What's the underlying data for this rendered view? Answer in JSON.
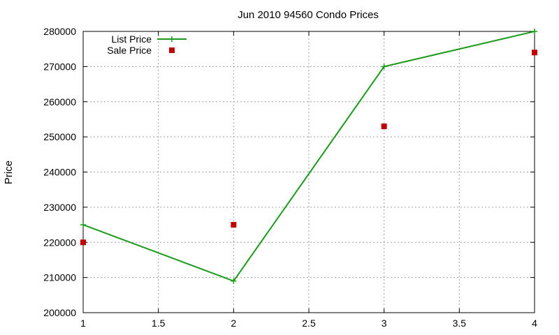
{
  "chart_data": {
    "type": "line",
    "title": "Jun 2010 94560 Condo Prices",
    "xlabel": "",
    "ylabel": "Price",
    "xlim": [
      1,
      4
    ],
    "ylim": [
      200000,
      280000
    ],
    "x_ticks": [
      1,
      1.5,
      2,
      2.5,
      3,
      3.5,
      4
    ],
    "x_tick_labels": [
      "1",
      "1.5",
      "2",
      "2.5",
      "3",
      "3.5",
      "4"
    ],
    "y_ticks": [
      200000,
      210000,
      220000,
      230000,
      240000,
      250000,
      260000,
      270000,
      280000
    ],
    "y_tick_labels": [
      "200000",
      "210000",
      "220000",
      "230000",
      "240000",
      "250000",
      "260000",
      "270000",
      "280000"
    ],
    "grid": true,
    "legend_position": "top-left",
    "series": [
      {
        "name": "List Price",
        "style": "line-points",
        "color": "#1a9a1a",
        "x": [
          1,
          2,
          3,
          4
        ],
        "values": [
          225000,
          209000,
          270000,
          280000
        ]
      },
      {
        "name": "Sale Price",
        "style": "points",
        "color": "#c00000",
        "x": [
          1,
          2,
          3,
          4
        ],
        "values": [
          220000,
          225000,
          253000,
          274000
        ]
      }
    ]
  }
}
